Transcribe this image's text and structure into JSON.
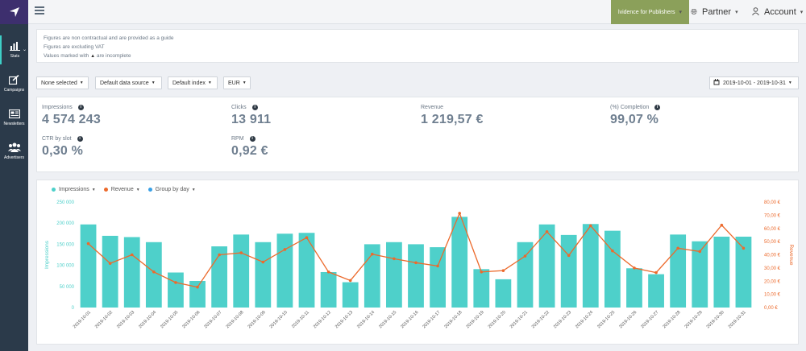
{
  "sidebar": {
    "items": [
      {
        "label": "Stats"
      },
      {
        "label": "Campaigns"
      },
      {
        "label": "Newsletters"
      },
      {
        "label": "Advertisers"
      }
    ]
  },
  "topbar": {
    "brand_menu": "lvidence for Publishers",
    "partner_label": "Partner",
    "account_label": "Account"
  },
  "notes": [
    "Figures are non contractual and are provided as a guide",
    "Figures are excluding VAT",
    "Values marked with",
    "are incomplete"
  ],
  "filters": {
    "selection": "None selected",
    "data_source": "Default data source",
    "index": "Default index",
    "currency": "EUR",
    "date_range": "2019-10-01 - 2019-10-31"
  },
  "kpis": {
    "impressions_label": "Impressions",
    "impressions_value": "4 574 243",
    "clicks_label": "Clicks",
    "clicks_value": "13 911",
    "revenue_label": "Revenue",
    "revenue_value": "1 219,57 €",
    "completion_label": "(%) Completion",
    "completion_value": "99,07 %",
    "ctr_label": "CTR by slot",
    "ctr_value": "0,30 %",
    "rpm_label": "RPM",
    "rpm_value": "0,92 €"
  },
  "chart_legend": {
    "impressions": "Impressions",
    "revenue": "Revenue",
    "group": "Group by day"
  },
  "colors": {
    "bars": "#4ed0ca",
    "line": "#ec6a2c",
    "group_dot": "#3aa0e6"
  },
  "chart_data": {
    "type": "bar",
    "categories": [
      "2019-10-01",
      "2019-10-02",
      "2019-10-03",
      "2019-10-04",
      "2019-10-05",
      "2019-10-06",
      "2019-10-07",
      "2019-10-08",
      "2019-10-09",
      "2019-10-10",
      "2019-10-11",
      "2019-10-12",
      "2019-10-13",
      "2019-10-14",
      "2019-10-15",
      "2019-10-16",
      "2019-10-17",
      "2019-10-18",
      "2019-10-19",
      "2019-10-20",
      "2019-10-21",
      "2019-10-22",
      "2019-10-23",
      "2019-10-24",
      "2019-10-25",
      "2019-10-26",
      "2019-10-27",
      "2019-10-28",
      "2019-10-29",
      "2019-10-30",
      "2019-10-31"
    ],
    "series": [
      {
        "name": "Impressions",
        "type": "bar",
        "axis": "left",
        "values": [
          197000,
          170000,
          167000,
          155000,
          83000,
          63000,
          145000,
          173000,
          155000,
          175000,
          177000,
          84000,
          60000,
          150000,
          155000,
          150000,
          143000,
          215000,
          91000,
          67000,
          155000,
          197000,
          172000,
          198000,
          182000,
          93000,
          79000,
          173000,
          157000,
          168000,
          168000
        ]
      },
      {
        "name": "Revenue",
        "type": "line",
        "axis": "right",
        "values": [
          48.5,
          33.5,
          40,
          27,
          19,
          15.5,
          40,
          41.5,
          34.5,
          44,
          53,
          27,
          20.5,
          40.5,
          37,
          34,
          31.5,
          71.5,
          27,
          28,
          39,
          57.5,
          39.5,
          62,
          43,
          30,
          26.5,
          45,
          42.5,
          62.5,
          45
        ]
      }
    ],
    "ylabel": "Impressions",
    "y2label": "Revenue",
    "ylim": [
      0,
      250000
    ],
    "y2lim": [
      0,
      80
    ],
    "yticks": [
      "0",
      "50 000",
      "100 000",
      "150 000",
      "200 000",
      "250 000"
    ],
    "y2ticks": [
      "0,00 €",
      "10,00 €",
      "20,00 €",
      "30,00 €",
      "40,00 €",
      "50,00 €",
      "60,00 €",
      "70,00 €",
      "80,00 €"
    ],
    "grid": false
  }
}
